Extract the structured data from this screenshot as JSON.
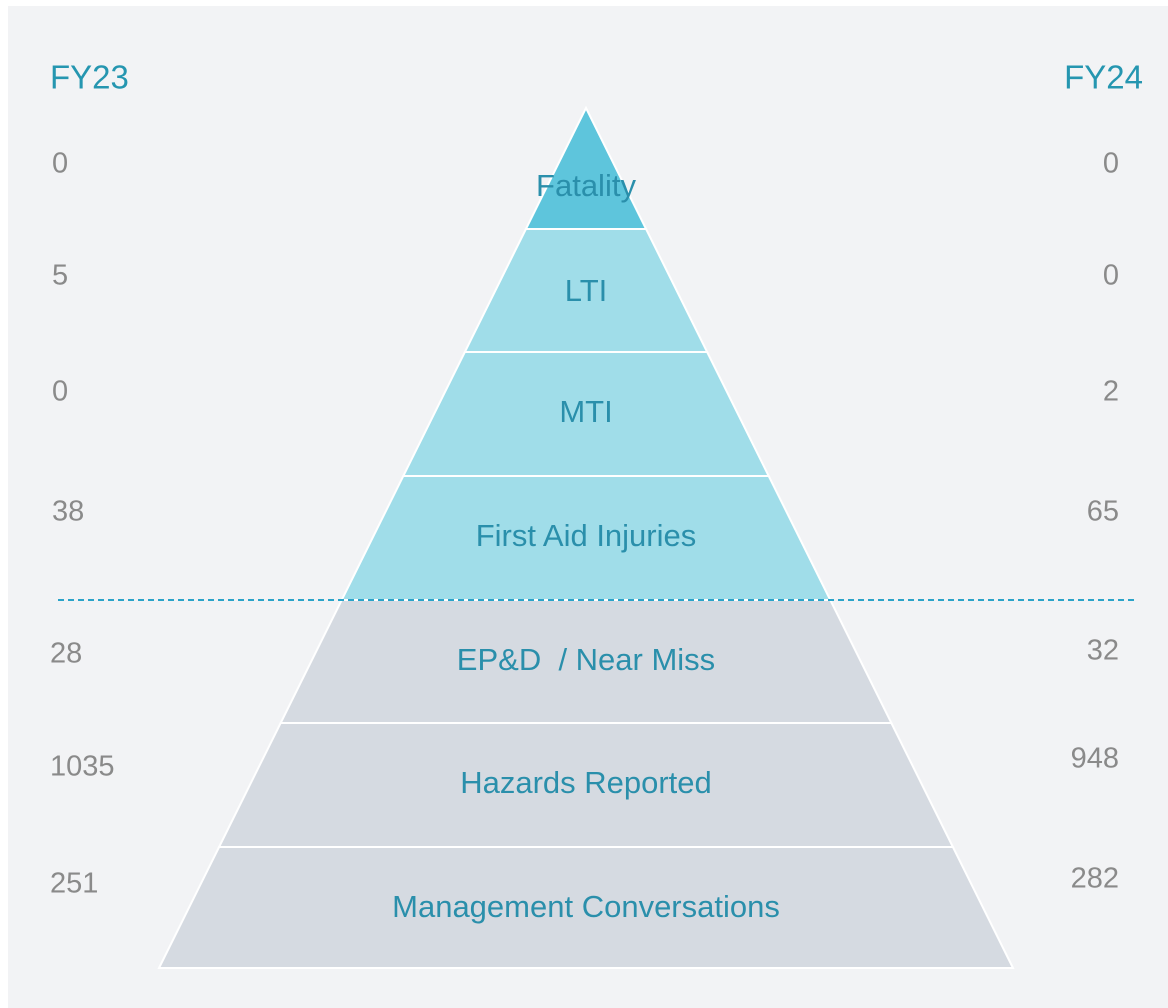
{
  "header": {
    "left": "FY23",
    "right": "FY24"
  },
  "levels": [
    {
      "label": "Fatality",
      "fy23": 0,
      "fy24": 0
    },
    {
      "label": "LTI",
      "fy23": 5,
      "fy24": 0
    },
    {
      "label": "MTI",
      "fy23": 0,
      "fy24": 2
    },
    {
      "label": "First Aid Injuries",
      "fy23": 38,
      "fy24": 65
    },
    {
      "label": "EP&D  / Near Miss",
      "fy23": 28,
      "fy24": 32
    },
    {
      "label": "Hazards Reported",
      "fy23": 1035,
      "fy24": 948
    },
    {
      "label": "Management Conversations",
      "fy23": 251,
      "fy24": 282
    }
  ]
}
